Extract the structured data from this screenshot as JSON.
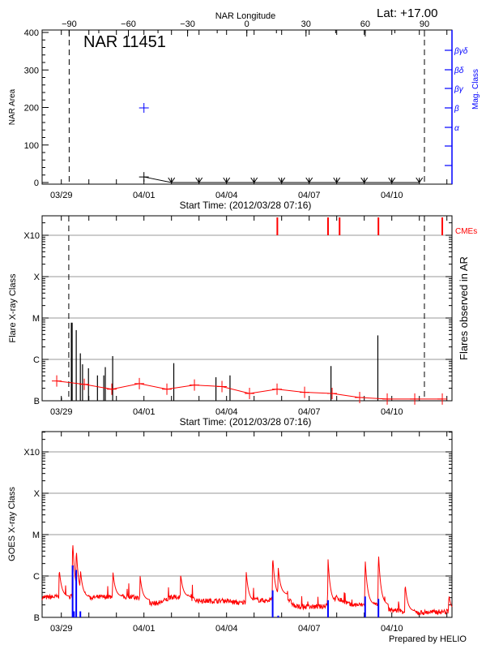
{
  "header": {
    "latitude": "Lat: +17.00",
    "region_title": "NAR 11451",
    "footer": "Prepared by HELIO"
  },
  "colors": {
    "area": "#000000",
    "mag_class": "#0000ff",
    "cme": "#ff0000",
    "flare_count": "#ff0000",
    "goes_flux": "#ff0000",
    "goes_flares": "#0000ff",
    "grid": "#999999"
  },
  "chart_data": [
    {
      "type": "line",
      "panel": "top",
      "xlabel": "Start Time: (2012/03/28 07:16)",
      "ylabel": "NAR Area",
      "ylabel_right": "Mag. Class",
      "top_axis_label": "NAR Longitude",
      "top_axis_ticks": [
        -90,
        -60,
        -30,
        0,
        30,
        60,
        90
      ],
      "longitude_limits_dashed": [
        -90,
        90
      ],
      "ylim": [
        0,
        400
      ],
      "yticks": [
        0,
        100,
        200,
        300,
        400
      ],
      "xticks": [
        {
          "date": "2012-03-29T00:00",
          "label": "03/29"
        },
        {
          "date": "2012-04-01T00:00",
          "label": "04/01"
        },
        {
          "date": "2012-04-04T00:00",
          "label": "04/04"
        },
        {
          "date": "2012-04-07T00:00",
          "label": "04/07"
        },
        {
          "date": "2012-04-10T00:00",
          "label": "04/10"
        }
      ],
      "mag_class_ticks": [
        "α",
        "β",
        "βγ",
        "βδ",
        "βγδ"
      ],
      "area_series": [
        {
          "date": "2012-04-01T00:00",
          "area": 15,
          "marker": "plus"
        },
        {
          "date": "2012-04-02T00:00",
          "area": 0,
          "marker": "arrow"
        },
        {
          "date": "2012-04-03T00:00",
          "area": 0,
          "marker": "arrow"
        },
        {
          "date": "2012-04-04T00:00",
          "area": 0,
          "marker": "arrow"
        },
        {
          "date": "2012-04-05T00:00",
          "area": 0,
          "marker": "arrow"
        },
        {
          "date": "2012-04-06T00:00",
          "area": 0,
          "marker": "arrow"
        },
        {
          "date": "2012-04-07T00:00",
          "area": 0,
          "marker": "arrow"
        },
        {
          "date": "2012-04-08T00:00",
          "area": 0,
          "marker": "arrow"
        },
        {
          "date": "2012-04-09T00:00",
          "area": 0,
          "marker": "arrow"
        },
        {
          "date": "2012-04-10T00:00",
          "area": 0,
          "marker": "arrow"
        },
        {
          "date": "2012-04-11T00:00",
          "area": 0,
          "marker": "arrow"
        }
      ],
      "mag_class_series": [
        {
          "date": "2012-04-01T00:00",
          "class": "β"
        }
      ]
    },
    {
      "type": "bar",
      "panel": "middle",
      "xlabel": "Start Time: (2012/03/28 07:16)",
      "ylabel": "Flare X-ray Class",
      "ylabel_right": "Flares observed in AR",
      "cme_label": "CMEs",
      "yticks": [
        "B",
        "C",
        "M",
        "X",
        "X10"
      ],
      "grid": true,
      "limb_dates_dashed": [
        "2012-03-29T06:30",
        "2012-04-11T04:25"
      ],
      "flares": [
        {
          "date": "2012-03-29T00:05",
          "class": "B1.2"
        },
        {
          "date": "2012-03-29T08:45",
          "class": "C7.7"
        },
        {
          "date": "2012-03-29T09:25",
          "class": "C7.7"
        },
        {
          "date": "2012-03-29T13:00",
          "class": "C5.1"
        },
        {
          "date": "2012-03-29T16:35",
          "class": "C1.4"
        },
        {
          "date": "2012-03-29T18:30",
          "class": "B7.6"
        },
        {
          "date": "2012-03-29T23:40",
          "class": "B6.1"
        },
        {
          "date": "2012-03-30T07:30",
          "class": "B4.1"
        },
        {
          "date": "2012-03-30T13:00",
          "class": "B4.1"
        },
        {
          "date": "2012-03-30T14:20",
          "class": "B6.5"
        },
        {
          "date": "2012-03-30T20:45",
          "class": "C1.2"
        },
        {
          "date": "2012-04-02T02:00",
          "class": "B8.1"
        },
        {
          "date": "2012-04-03T14:45",
          "class": "B3.7"
        },
        {
          "date": "2012-04-04T03:00",
          "class": "B4.1"
        },
        {
          "date": "2012-04-07T19:00",
          "class": "B6.9"
        },
        {
          "date": "2012-04-09T11:50",
          "class": "C3.8"
        }
      ],
      "cmes": [
        "2012-04-05T20:15",
        "2012-04-07T16:25",
        "2012-04-08T02:30",
        "2012-04-09T12:20",
        "2012-04-11T20:00"
      ],
      "flare_count_curve": [
        {
          "date": "2012-03-28T20:00",
          "level": "B3.0"
        },
        {
          "date": "2012-03-29T20:00",
          "level": "B2.5"
        },
        {
          "date": "2012-03-30T20:00",
          "level": "B1.9"
        },
        {
          "date": "2012-03-31T20:00",
          "level": "B2.6"
        },
        {
          "date": "2012-04-01T20:00",
          "level": "B1.9"
        },
        {
          "date": "2012-04-02T20:00",
          "level": "B2.4"
        },
        {
          "date": "2012-04-03T20:00",
          "level": "B2.2"
        },
        {
          "date": "2012-04-04T20:00",
          "level": "B1.5"
        },
        {
          "date": "2012-04-05T20:00",
          "level": "B1.9"
        },
        {
          "date": "2012-04-06T20:00",
          "level": "B1.6"
        },
        {
          "date": "2012-04-07T20:00",
          "level": "B1.5"
        },
        {
          "date": "2012-04-08T20:00",
          "level": "B1.2"
        },
        {
          "date": "2012-04-09T20:00",
          "level": "B1.1"
        },
        {
          "date": "2012-04-10T20:00",
          "level": "B1.1"
        },
        {
          "date": "2012-04-11T20:00",
          "level": "B1.1"
        }
      ]
    },
    {
      "type": "line",
      "panel": "bottom",
      "ylabel": "GOES X-ray Class",
      "yticks": [
        "B",
        "C",
        "M",
        "X",
        "X10"
      ],
      "grid": true,
      "background": [
        {
          "date": "2012-03-28T07:16",
          "level": "B3.0"
        },
        {
          "date": "2012-03-29T00:00",
          "level": "B3.2"
        },
        {
          "date": "2012-03-30T00:00",
          "level": "B3.0"
        },
        {
          "date": "2012-03-31T00:00",
          "level": "B3.2"
        },
        {
          "date": "2012-03-31T18:00",
          "level": "B3.0"
        },
        {
          "date": "2012-04-01T00:00",
          "level": "B2.2"
        },
        {
          "date": "2012-04-01T12:00",
          "level": "B2.2"
        },
        {
          "date": "2012-04-02T00:00",
          "level": "B3.0"
        },
        {
          "date": "2012-04-02T12:00",
          "level": "B3.2"
        },
        {
          "date": "2012-04-03T00:00",
          "level": "B2.5"
        },
        {
          "date": "2012-04-04T00:00",
          "level": "B2.5"
        },
        {
          "date": "2012-04-04T12:00",
          "level": "B2.2"
        },
        {
          "date": "2012-04-05T00:00",
          "level": "B2.7"
        },
        {
          "date": "2012-04-05T12:00",
          "level": "B2.5"
        },
        {
          "date": "2012-04-06T00:00",
          "level": "B4.0"
        },
        {
          "date": "2012-04-06T12:00",
          "level": "B1.8"
        },
        {
          "date": "2012-04-07T12:00",
          "level": "B1.8"
        },
        {
          "date": "2012-04-08T00:00",
          "level": "B3.0"
        },
        {
          "date": "2012-04-08T12:00",
          "level": "B2.0"
        },
        {
          "date": "2012-04-09T12:00",
          "level": "B2.0"
        },
        {
          "date": "2012-04-10T00:00",
          "level": "B1.5"
        },
        {
          "date": "2012-04-11T00:00",
          "level": "B1.3"
        },
        {
          "date": "2012-04-12T05:00",
          "level": "B1.4"
        }
      ],
      "peaks": [
        {
          "date": "2012-03-28T22:10",
          "level": "C1.5"
        },
        {
          "date": "2012-03-29T09:50",
          "level": "C8.0"
        },
        {
          "date": "2012-03-29T13:00",
          "level": "C5.0"
        },
        {
          "date": "2012-03-29T16:35",
          "level": "C1.5"
        },
        {
          "date": "2012-03-30T20:55",
          "level": "C1.3"
        },
        {
          "date": "2012-03-31T20:40",
          "level": "C1.0"
        },
        {
          "date": "2012-04-02T08:00",
          "level": "C1.1"
        },
        {
          "date": "2012-04-04T17:05",
          "level": "C1.3"
        },
        {
          "date": "2012-04-05T16:10",
          "level": "C3.2"
        },
        {
          "date": "2012-04-05T21:00",
          "level": "C1.6"
        },
        {
          "date": "2012-04-07T16:25",
          "level": "C2.6"
        },
        {
          "date": "2012-04-09T00:45",
          "level": "C2.7"
        },
        {
          "date": "2012-04-09T12:20",
          "level": "C4.0"
        },
        {
          "date": "2012-04-10T11:35",
          "level": "B6.6"
        },
        {
          "date": "2012-04-12T01:45",
          "level": "B3.5"
        }
      ],
      "event_markers": [
        {
          "date": "2012-03-29T09:50",
          "level": "C1.8"
        },
        {
          "date": "2012-03-29T11:00",
          "level": "B1.4"
        },
        {
          "date": "2012-03-29T13:00",
          "level": "C1.4"
        },
        {
          "date": "2012-03-29T16:35",
          "level": "B1.4"
        },
        {
          "date": "2012-04-05T16:10",
          "level": "B4.5"
        },
        {
          "date": "2012-04-05T21:00",
          "level": "B1.1"
        },
        {
          "date": "2012-04-07T16:25",
          "level": "B2.6"
        },
        {
          "date": "2012-04-09T00:45",
          "level": "B3.2"
        },
        {
          "date": "2012-04-09T12:20",
          "level": "B2.8"
        }
      ]
    }
  ]
}
